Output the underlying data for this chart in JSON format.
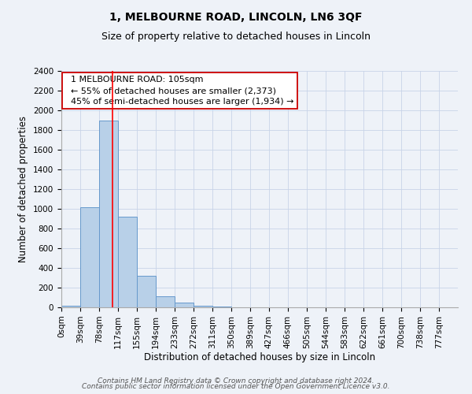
{
  "title": "1, MELBOURNE ROAD, LINCOLN, LN6 3QF",
  "subtitle": "Size of property relative to detached houses in Lincoln",
  "xlabel": "Distribution of detached houses by size in Lincoln",
  "ylabel": "Number of detached properties",
  "bar_values": [
    20,
    1020,
    1900,
    920,
    320,
    110,
    45,
    20,
    10,
    0,
    0,
    0,
    0,
    0,
    0,
    0,
    0,
    0,
    0,
    0
  ],
  "bin_labels": [
    "0sqm",
    "39sqm",
    "78sqm",
    "117sqm",
    "155sqm",
    "194sqm",
    "233sqm",
    "272sqm",
    "311sqm",
    "350sqm",
    "389sqm",
    "427sqm",
    "466sqm",
    "505sqm",
    "544sqm",
    "583sqm",
    "622sqm",
    "661sqm",
    "700sqm",
    "738sqm",
    "777sqm"
  ],
  "bin_edges": [
    0,
    39,
    78,
    117,
    155,
    194,
    233,
    272,
    311,
    350,
    389,
    427,
    466,
    505,
    544,
    583,
    622,
    661,
    700,
    738,
    777
  ],
  "bar_color": "#b8d0e8",
  "bar_edge_color": "#6699cc",
  "red_line_x": 105,
  "ylim": [
    0,
    2400
  ],
  "yticks": [
    0,
    200,
    400,
    600,
    800,
    1000,
    1200,
    1400,
    1600,
    1800,
    2000,
    2200,
    2400
  ],
  "annotation_line1": "  1 MELBOURNE ROAD: 105sqm",
  "annotation_line2": "  ← 55% of detached houses are smaller (2,373)",
  "annotation_line3": "  45% of semi-detached houses are larger (1,934) →",
  "footer_line1": "Contains HM Land Registry data © Crown copyright and database right 2024.",
  "footer_line2": "Contains public sector information licensed under the Open Government Licence v3.0.",
  "background_color": "#eef2f8",
  "grid_color": "#c8d4e8",
  "title_fontsize": 10,
  "subtitle_fontsize": 9,
  "annotation_fontsize": 8,
  "axis_label_fontsize": 8.5,
  "tick_fontsize": 7.5,
  "footer_fontsize": 6.5
}
